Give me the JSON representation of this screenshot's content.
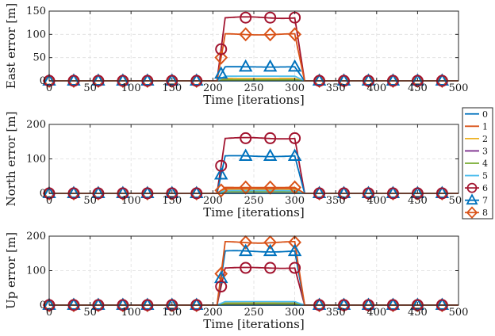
{
  "chart_data": [
    {
      "type": "line",
      "ylabel": "East error  [m]",
      "xlabel": "Time [iterations]",
      "xlim": [
        0,
        500
      ],
      "ylim": [
        0,
        150
      ],
      "xticks": [
        0,
        50,
        100,
        150,
        200,
        250,
        300,
        350,
        400,
        450,
        500
      ],
      "yticks": [
        0,
        50,
        100,
        150
      ],
      "grid": true,
      "plateaus": {
        "6": 136,
        "8": 100,
        "7": 30,
        "5": 10,
        "2": 5,
        "1": 3,
        "3": 2,
        "4": 2
      }
    },
    {
      "type": "line",
      "ylabel": "North error  [m]",
      "xlabel": "Time [iterations]",
      "xlim": [
        0,
        500
      ],
      "ylim": [
        0,
        200
      ],
      "xticks": [
        0,
        50,
        100,
        150,
        200,
        250,
        300,
        350,
        400,
        450,
        500
      ],
      "yticks": [
        0,
        100,
        200
      ],
      "grid": true,
      "plateaus": {
        "6": 160,
        "7": 108,
        "8": 17,
        "1": 14,
        "2": 10,
        "5": 8,
        "3": 5,
        "4": 5
      }
    },
    {
      "type": "line",
      "ylabel": "Up error  [m]",
      "xlabel": "Time [iterations]",
      "xlim": [
        0,
        500
      ],
      "ylim": [
        0,
        200
      ],
      "xticks": [
        0,
        50,
        100,
        150,
        200,
        250,
        300,
        350,
        400,
        450,
        500
      ],
      "yticks": [
        0,
        100,
        200
      ],
      "grid": true,
      "plateaus": {
        "8": 182,
        "7": 156,
        "6": 108,
        "5": 10,
        "2": 6,
        "1": 5,
        "3": 4,
        "4": 4
      }
    }
  ],
  "time_model": {
    "rise_start": 205,
    "rise_end": 215,
    "fall_start": 300,
    "fall_end": 312
  },
  "legend": {
    "placement": "right",
    "entries": [
      {
        "name": "0",
        "color": "#0072BD",
        "marker": "none"
      },
      {
        "name": "1",
        "color": "#D95319",
        "marker": "none"
      },
      {
        "name": "2",
        "color": "#EDB120",
        "marker": "none"
      },
      {
        "name": "3",
        "color": "#7E2F8E",
        "marker": "none"
      },
      {
        "name": "4",
        "color": "#77AC30",
        "marker": "none"
      },
      {
        "name": "5",
        "color": "#4DBEEE",
        "marker": "none"
      },
      {
        "name": "6",
        "color": "#A2142F",
        "marker": "circle"
      },
      {
        "name": "7",
        "color": "#0072BD",
        "marker": "triangle"
      },
      {
        "name": "8",
        "color": "#D95319",
        "marker": "diamond"
      }
    ]
  }
}
